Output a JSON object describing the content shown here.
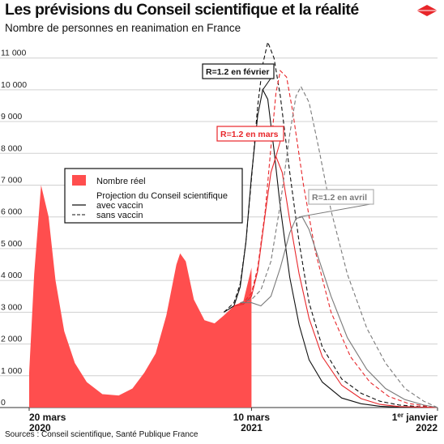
{
  "header": {
    "title": "Les prévisions du Conseil scientifique et la réalité",
    "subtitle": "Nombre de personnes en reanimation en France"
  },
  "footer": {
    "sources": "Sources : Conseil scientifique, Santé Publique France"
  },
  "colors": {
    "real": "#ff4e4e",
    "red_line": "#e8262a",
    "black_line": "#111111",
    "grey_line": "#7a7a7a",
    "grid": "#d0d0d0",
    "logo": "#e8262a"
  },
  "icons": {
    "logo": "red-diamond-logo"
  },
  "chart_data": {
    "type": "area",
    "yticks": [
      "0",
      "1 000",
      "2 000",
      "3 000",
      "4 000",
      "5 000",
      "6 000",
      "7 000",
      "8 000",
      "9 000",
      "10 000",
      "11 000"
    ],
    "ylim": [
      0,
      11500
    ],
    "xlim": [
      "2020-03-20",
      "2022-01-01"
    ],
    "xticks": [
      {
        "date": "2020-03-20",
        "line1": "20 mars",
        "line2": "2020"
      },
      {
        "date": "2021-03-10",
        "line1": "10 mars",
        "line2": "2021"
      },
      {
        "date": "2022-01-01",
        "line1": "1er janvier",
        "line2": "2022",
        "sup": "er"
      }
    ],
    "grid": true,
    "legend": {
      "position": "middle-left",
      "real": "Nombre réel",
      "projection": "Projection du Conseil scientifique",
      "with_vaccine": "avec vaccin",
      "without_vaccine": "sans vaccin"
    },
    "annotations": [
      {
        "text": "R=1.2 en février",
        "color": "#111111"
      },
      {
        "text": "R=1.2 en mars",
        "color": "#e8262a"
      },
      {
        "text": "R=1.2 en avril",
        "color": "#7a7a7a"
      }
    ],
    "series": [
      {
        "name": "Nombre réel",
        "x": [
          "2020-03-20",
          "2020-03-28",
          "2020-04-08",
          "2020-04-20",
          "2020-05-01",
          "2020-05-15",
          "2020-06-01",
          "2020-06-20",
          "2020-07-15",
          "2020-08-10",
          "2020-09-01",
          "2020-09-20",
          "2020-10-08",
          "2020-10-25",
          "2020-11-10",
          "2020-11-16",
          "2020-11-25",
          "2020-12-08",
          "2020-12-25",
          "2021-01-10",
          "2021-01-25",
          "2021-02-10",
          "2021-02-25",
          "2021-03-10"
        ],
        "values": [
          1100,
          4200,
          7000,
          6000,
          4000,
          2400,
          1400,
          800,
          420,
          380,
          600,
          1100,
          1700,
          2900,
          4500,
          4850,
          4600,
          3400,
          2750,
          2650,
          2900,
          3200,
          3350,
          4400
        ]
      },
      {
        "name": "R=1.2 en février — sans vaccin",
        "x": [
          "2021-01-25",
          "2021-02-10",
          "2021-02-20",
          "2021-03-01",
          "2021-03-10",
          "2021-03-20",
          "2021-03-28",
          "2021-04-05",
          "2021-04-15",
          "2021-04-25",
          "2021-05-10",
          "2021-05-25",
          "2021-06-10",
          "2021-07-01",
          "2021-08-01",
          "2021-09-01",
          "2021-10-01",
          "2021-11-01",
          "2021-12-01",
          "2022-01-01"
        ],
        "values": [
          3000,
          3300,
          3900,
          5200,
          7200,
          9500,
          10800,
          11500,
          11000,
          9800,
          7400,
          5200,
          3300,
          1900,
          900,
          450,
          200,
          80,
          30,
          0
        ]
      },
      {
        "name": "R=1.2 en février — avec vaccin",
        "x": [
          "2021-01-25",
          "2021-02-10",
          "2021-02-20",
          "2021-03-01",
          "2021-03-10",
          "2021-03-20",
          "2021-03-28",
          "2021-04-05",
          "2021-04-15",
          "2021-04-25",
          "2021-05-10",
          "2021-05-25",
          "2021-06-10",
          "2021-07-01",
          "2021-08-01",
          "2021-09-01",
          "2021-10-01",
          "2021-11-01",
          "2022-01-01"
        ],
        "values": [
          3000,
          3200,
          3800,
          5200,
          7300,
          9200,
          10000,
          9700,
          8100,
          6300,
          4100,
          2600,
          1500,
          800,
          300,
          120,
          40,
          10,
          0
        ]
      },
      {
        "name": "R=1.2 en mars — sans vaccin",
        "x": [
          "2021-02-10",
          "2021-02-25",
          "2021-03-10",
          "2021-03-20",
          "2021-04-01",
          "2021-04-10",
          "2021-04-18",
          "2021-04-25",
          "2021-05-05",
          "2021-05-15",
          "2021-06-01",
          "2021-06-20",
          "2021-07-15",
          "2021-08-15",
          "2021-09-15",
          "2021-10-15",
          "2021-11-15",
          "2021-12-15",
          "2022-01-01"
        ],
        "values": [
          3200,
          3300,
          3600,
          4400,
          6200,
          8200,
          9900,
          10600,
          10400,
          9300,
          7000,
          4900,
          3000,
          1600,
          800,
          350,
          130,
          40,
          0
        ]
      },
      {
        "name": "R=1.2 en mars — avec vaccin",
        "x": [
          "2021-02-10",
          "2021-02-25",
          "2021-03-10",
          "2021-03-20",
          "2021-04-01",
          "2021-04-10",
          "2021-04-18",
          "2021-04-28",
          "2021-05-10",
          "2021-05-25",
          "2021-06-10",
          "2021-07-01",
          "2021-08-01",
          "2021-09-01",
          "2021-10-01",
          "2021-11-01",
          "2022-01-01"
        ],
        "values": [
          3200,
          3250,
          3500,
          4300,
          6100,
          7400,
          7900,
          7400,
          5900,
          4200,
          2800,
          1600,
          700,
          280,
          100,
          30,
          0
        ]
      },
      {
        "name": "R=1.2 en avril — sans vaccin",
        "x": [
          "2021-02-20",
          "2021-03-10",
          "2021-03-25",
          "2021-04-10",
          "2021-04-25",
          "2021-05-10",
          "2021-05-20",
          "2021-05-28",
          "2021-06-10",
          "2021-06-25",
          "2021-07-15",
          "2021-08-10",
          "2021-09-10",
          "2021-10-10",
          "2021-11-10",
          "2021-12-10",
          "2022-01-01"
        ],
        "values": [
          3300,
          3400,
          3700,
          4600,
          6400,
          8600,
          9800,
          10100,
          9600,
          8200,
          6200,
          4200,
          2500,
          1400,
          600,
          200,
          0
        ]
      },
      {
        "name": "R=1.2 en avril — avec vaccin",
        "x": [
          "2021-02-20",
          "2021-03-10",
          "2021-03-25",
          "2021-04-10",
          "2021-04-25",
          "2021-05-10",
          "2021-05-20",
          "2021-05-30",
          "2021-06-10",
          "2021-06-25",
          "2021-07-15",
          "2021-08-10",
          "2021-09-10",
          "2021-10-10",
          "2021-11-10",
          "2021-12-10",
          "2022-01-01"
        ],
        "values": [
          3300,
          3300,
          3200,
          3500,
          4400,
          5500,
          5950,
          6000,
          5600,
          4700,
          3500,
          2200,
          1200,
          600,
          250,
          80,
          0
        ]
      }
    ]
  }
}
